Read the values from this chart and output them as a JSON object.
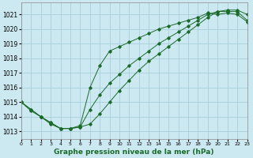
{
  "title": "Graphe pression niveau de la mer (hPa)",
  "bg_color": "#cce8f0",
  "grid_color": "#aacfdb",
  "line_color": "#1a6b2a",
  "series1": {
    "x": [
      0,
      1,
      2,
      3,
      4,
      5,
      6,
      7,
      8,
      9,
      10,
      11,
      12,
      13,
      14,
      15,
      16,
      17,
      18,
      19,
      20,
      21,
      22,
      23
    ],
    "y": [
      1015.0,
      1014.5,
      1014.0,
      1013.6,
      1013.2,
      1013.2,
      1013.3,
      1013.5,
      1014.2,
      1015.0,
      1015.8,
      1016.5,
      1017.2,
      1017.8,
      1018.3,
      1018.8,
      1019.3,
      1019.8,
      1020.3,
      1020.8,
      1021.2,
      1021.3,
      1021.3,
      1021.0
    ]
  },
  "series2": {
    "x": [
      0,
      1,
      2,
      3,
      4,
      5,
      6,
      7,
      8,
      9,
      10,
      11,
      12,
      13,
      14,
      15,
      16,
      17,
      18,
      19,
      20,
      21,
      22,
      23
    ],
    "y": [
      1015.0,
      1014.5,
      1014.0,
      1013.6,
      1013.2,
      1013.2,
      1013.3,
      1014.5,
      1015.5,
      1016.3,
      1016.9,
      1017.5,
      1018.0,
      1018.5,
      1019.0,
      1019.4,
      1019.8,
      1020.2,
      1020.6,
      1021.0,
      1021.2,
      1021.2,
      1021.2,
      1020.6
    ]
  },
  "series3": {
    "x": [
      0,
      1,
      2,
      3,
      4,
      5,
      6,
      7,
      8,
      9,
      10,
      11,
      12,
      13,
      14,
      15,
      16,
      17,
      18,
      19,
      20,
      21,
      22,
      23
    ],
    "y": [
      1015.0,
      1014.4,
      1014.0,
      1013.5,
      1013.2,
      1013.2,
      1013.4,
      1016.0,
      1017.5,
      1018.5,
      1018.8,
      1019.1,
      1019.4,
      1019.7,
      1020.0,
      1020.2,
      1020.4,
      1020.6,
      1020.8,
      1021.1,
      1021.0,
      1021.1,
      1021.0,
      1020.5
    ]
  },
  "xlim": [
    0,
    23
  ],
  "ylim": [
    1012.5,
    1021.8
  ],
  "xticks": [
    0,
    1,
    2,
    3,
    4,
    5,
    6,
    7,
    8,
    9,
    10,
    11,
    12,
    13,
    14,
    15,
    16,
    17,
    18,
    19,
    20,
    21,
    22,
    23
  ],
  "yticks": [
    1013,
    1014,
    1015,
    1016,
    1017,
    1018,
    1019,
    1020,
    1021
  ],
  "xlabel_fontsize": 6.5,
  "tick_fontsize": 5.5
}
